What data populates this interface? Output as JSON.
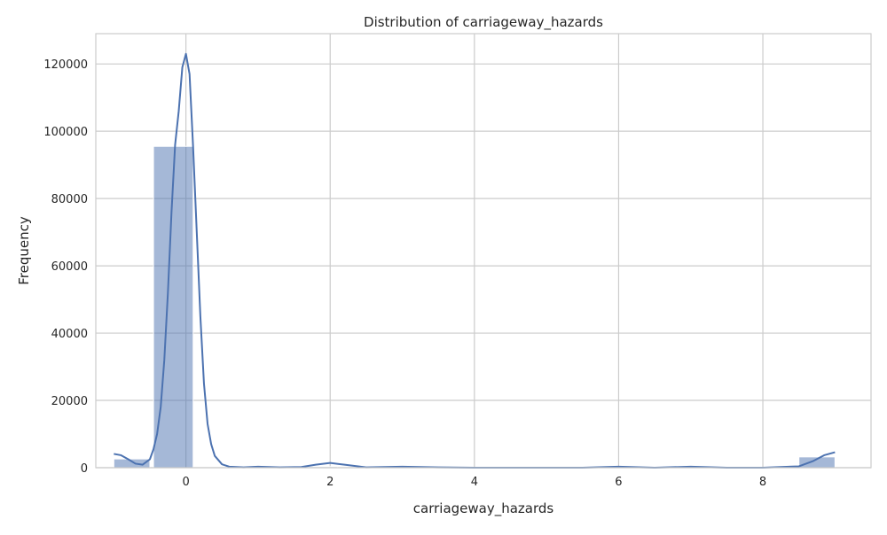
{
  "chart_data": {
    "type": "bar",
    "title": "Distribution of carriageway_hazards",
    "xlabel": "carriageway_hazards",
    "ylabel": "Frequency",
    "xlim": [
      -1.25,
      9.5
    ],
    "ylim": [
      0,
      129000
    ],
    "xticks": [
      0,
      2,
      4,
      6,
      8
    ],
    "yticks": [
      0,
      20000,
      40000,
      60000,
      80000,
      100000,
      120000
    ],
    "grid": true,
    "bins": [
      {
        "x0": -1.0,
        "x1": -0.5,
        "count": 2600
      },
      {
        "x0": -0.45,
        "x1": 0.1,
        "count": 95500
      },
      {
        "x0": 0.1,
        "x1": 0.6,
        "count": 0
      },
      {
        "x0": 0.6,
        "x1": 1.1,
        "count": 0
      },
      {
        "x0": 1.1,
        "x1": 1.6,
        "count": 0
      },
      {
        "x0": 1.6,
        "x1": 2.1,
        "count": 300
      },
      {
        "x0": 2.1,
        "x1": 2.6,
        "count": 0
      },
      {
        "x0": 8.5,
        "x1": 9.0,
        "count": 3200
      }
    ],
    "kde": {
      "x": [
        -1.0,
        -0.9,
        -0.8,
        -0.7,
        -0.6,
        -0.5,
        -0.45,
        -0.4,
        -0.35,
        -0.3,
        -0.25,
        -0.2,
        -0.15,
        -0.1,
        -0.05,
        0.0,
        0.05,
        0.1,
        0.15,
        0.2,
        0.25,
        0.3,
        0.35,
        0.4,
        0.5,
        0.6,
        0.8,
        1.0,
        1.3,
        1.6,
        1.8,
        2.0,
        2.2,
        2.5,
        3.0,
        3.5,
        4.0,
        5.0,
        5.5,
        6.0,
        6.5,
        7.0,
        7.5,
        8.0,
        8.5,
        8.7,
        8.85,
        9.0
      ],
      "y": [
        4100,
        3700,
        2500,
        1200,
        900,
        2500,
        5500,
        10000,
        18000,
        32000,
        52000,
        76000,
        96000,
        106000,
        119000,
        123000,
        117000,
        95000,
        70000,
        45000,
        25000,
        13000,
        7000,
        3500,
        1000,
        300,
        100,
        300,
        100,
        200,
        900,
        1400,
        900,
        100,
        300,
        100,
        0,
        0,
        0,
        300,
        0,
        300,
        0,
        0,
        400,
        2000,
        3700,
        4600
      ]
    },
    "colors": {
      "bar_fill": "#4c72b0",
      "line": "#4c72b0",
      "grid": "#cccccc",
      "frame": "#cccccc"
    }
  }
}
